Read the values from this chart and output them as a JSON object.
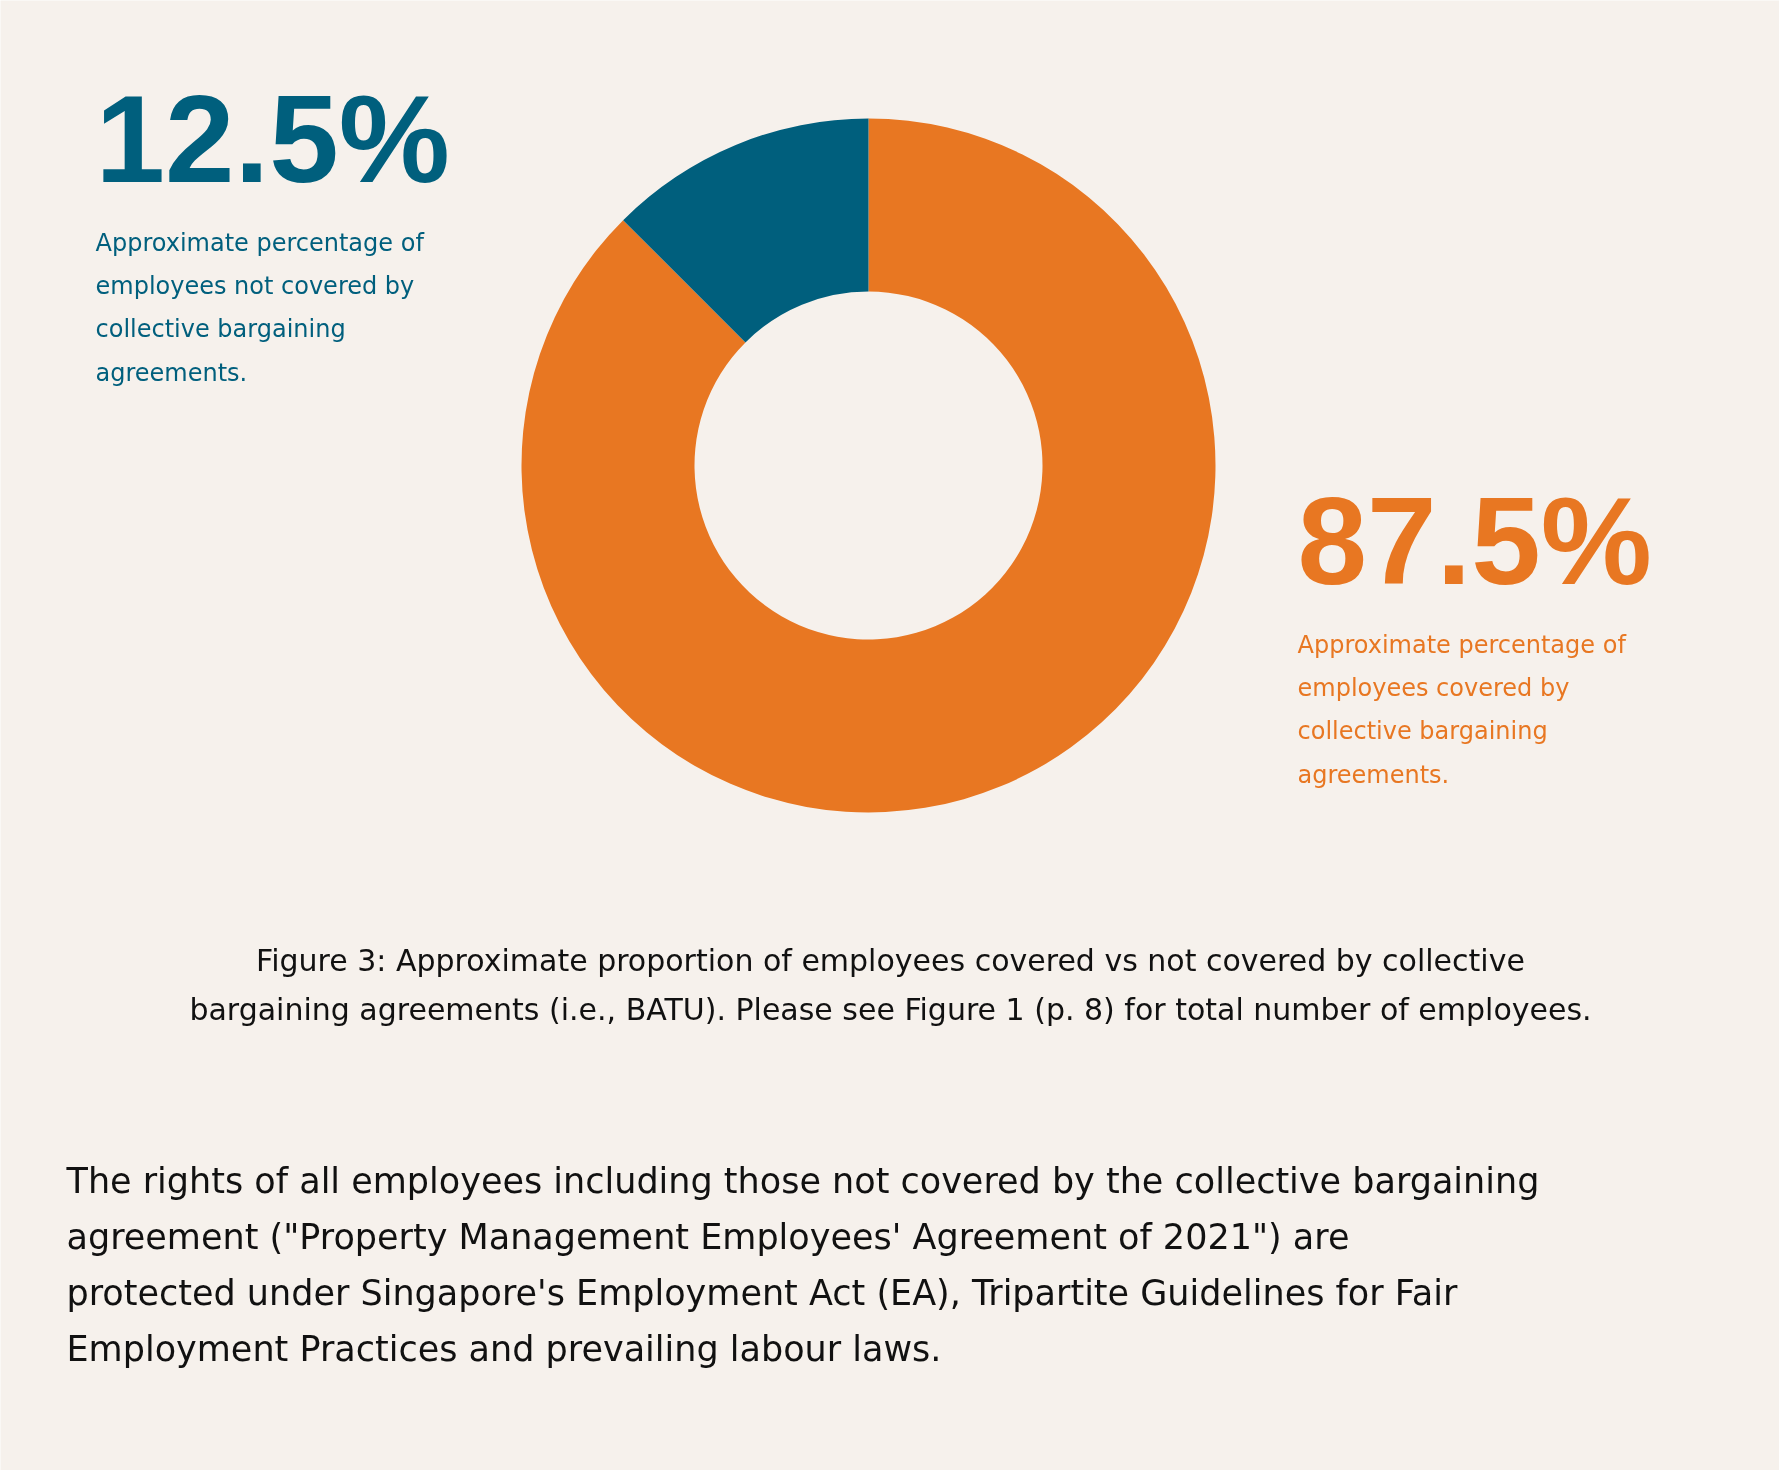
{
  "chart_data": {
    "type": "donut",
    "categories": [
      "Approximate percentage of\nemployees covered by\ncollective bargaining\nagreements.",
      "Approximate percentage of\nemployees not covered by\ncollective bargaining\nagreements."
    ],
    "values": [
      87.5,
      12.5
    ],
    "colors": [
      "#e87722",
      "#005f7d"
    ],
    "value_labels": [
      "87.5%",
      "12.5%"
    ],
    "annotations": [
      "Figure 3: Approximate proportion of employees covered vs not covered by collective\nbargaining agreements (i.e., BATU). Please see Figure 1 (p. 8) for total number of employees.",
      "The rights of all employees including those not covered by the collective bargaining\nagreement (\"Property Management Employees' Agreement of 2021\") are\nprotected under Singapore's Employment Act (EA), Tripartite Guidelines for Fair\nEmployment Practices and prevailing labour laws."
    ]
  }
}
